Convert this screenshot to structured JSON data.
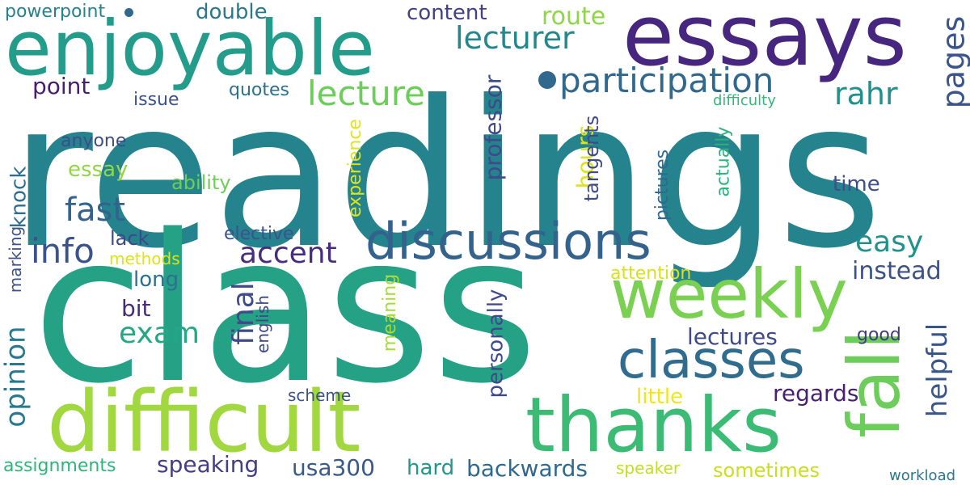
{
  "words": [
    {
      "id": "readings",
      "text": "readings",
      "color": "#24838d",
      "orientation": "horizontal"
    },
    {
      "id": "class",
      "text": "class",
      "color": "#25a286",
      "orientation": "horizontal"
    },
    {
      "id": "essays",
      "text": "essays",
      "color": "#46267e",
      "orientation": "horizontal"
    },
    {
      "id": "enjoyable",
      "text": "enjoyable",
      "color": "#249c8b",
      "orientation": "horizontal"
    },
    {
      "id": "difficult",
      "text": "difficult",
      "color": "#a1d73f",
      "orientation": "horizontal"
    },
    {
      "id": "thanks",
      "text": "thanks",
      "color": "#3cbb75",
      "orientation": "horizontal"
    },
    {
      "id": "discussions",
      "text": "discussions",
      "color": "#33638d",
      "orientation": "horizontal"
    },
    {
      "id": "weekly",
      "text": "weekly",
      "color": "#7ad151",
      "orientation": "horizontal"
    },
    {
      "id": "classes",
      "text": "classes",
      "color": "#2f6c8e",
      "orientation": "horizontal"
    },
    {
      "id": "fall",
      "text": "fall",
      "color": "#6ccd5a",
      "orientation": "vertical"
    },
    {
      "id": "participation",
      "text": "participation",
      "color": "#31688e",
      "orientation": "horizontal"
    },
    {
      "id": "lecturer",
      "text": "lecturer",
      "color": "#23888e",
      "orientation": "horizontal"
    },
    {
      "id": "lecture",
      "text": "lecture",
      "color": "#6ccd5a",
      "orientation": "horizontal"
    },
    {
      "id": "rahr",
      "text": "rahr",
      "color": "#21908d",
      "orientation": "horizontal"
    },
    {
      "id": "pages",
      "text": "pages",
      "color": "#3a548c",
      "orientation": "vertical"
    },
    {
      "id": "info",
      "text": "info",
      "color": "#3b528b",
      "orientation": "horizontal"
    },
    {
      "id": "fast",
      "text": "fast",
      "color": "#33638d",
      "orientation": "horizontal"
    },
    {
      "id": "accent",
      "text": "accent",
      "color": "#472d7b",
      "orientation": "horizontal"
    },
    {
      "id": "exam",
      "text": "exam",
      "color": "#22a884",
      "orientation": "horizontal"
    },
    {
      "id": "easy",
      "text": "easy",
      "color": "#21918c",
      "orientation": "horizontal"
    },
    {
      "id": "final",
      "text": "final",
      "color": "#3e4a89",
      "orientation": "vertical"
    },
    {
      "id": "helpful",
      "text": "helpful",
      "color": "#39568c",
      "orientation": "vertical"
    },
    {
      "id": "opinion",
      "text": "opinion",
      "color": "#2a788e",
      "orientation": "vertical"
    },
    {
      "id": "professor",
      "text": "professor",
      "color": "#3e4a89",
      "orientation": "vertical"
    },
    {
      "id": "personally",
      "text": "personally",
      "color": "#3e4989",
      "orientation": "vertical"
    },
    {
      "id": "instead",
      "text": "instead",
      "color": "#3b528b",
      "orientation": "horizontal"
    },
    {
      "id": "lectures",
      "text": "lectures",
      "color": "#3e4a89",
      "orientation": "horizontal"
    },
    {
      "id": "regards",
      "text": "regards",
      "color": "#482173",
      "orientation": "horizontal"
    },
    {
      "id": "speaking",
      "text": "speaking",
      "color": "#433e85",
      "orientation": "horizontal"
    },
    {
      "id": "backwards",
      "text": "backwards",
      "color": "#31688e",
      "orientation": "horizontal"
    },
    {
      "id": "usa300",
      "text": "usa300",
      "color": "#38598c",
      "orientation": "horizontal"
    },
    {
      "id": "hours",
      "text": "hours",
      "color": "#dde318",
      "orientation": "vertical"
    },
    {
      "id": "tangents",
      "text": "tangents",
      "color": "#3e4989",
      "orientation": "vertical"
    },
    {
      "id": "knock",
      "text": "knock",
      "color": "#2e6e8e",
      "orientation": "vertical"
    },
    {
      "id": "essay",
      "text": "essay",
      "color": "#90d743",
      "orientation": "horizontal"
    },
    {
      "id": "point",
      "text": "point",
      "color": "#481f70",
      "orientation": "horizontal"
    },
    {
      "id": "content",
      "text": "content",
      "color": "#424086",
      "orientation": "horizontal"
    },
    {
      "id": "route",
      "text": "route",
      "color": "#8ed645",
      "orientation": "horizontal"
    },
    {
      "id": "double",
      "text": "double",
      "color": "#2a778e",
      "orientation": "horizontal"
    },
    {
      "id": "powerpoint",
      "text": "powerpoint",
      "color": "#26828e",
      "orientation": "horizontal"
    },
    {
      "id": "quotes",
      "text": "quotes",
      "color": "#2d708e",
      "orientation": "horizontal"
    },
    {
      "id": "issue",
      "text": "issue",
      "color": "#3b528b",
      "orientation": "horizontal"
    },
    {
      "id": "anyone",
      "text": "anyone",
      "color": "#3d4d8a",
      "orientation": "horizontal"
    },
    {
      "id": "ability",
      "text": "ability",
      "color": "#6ece58",
      "orientation": "horizontal"
    },
    {
      "id": "experience",
      "text": "experience",
      "color": "#e2e418",
      "orientation": "vertical"
    },
    {
      "id": "pictures",
      "text": "pictures",
      "color": "#31688e",
      "orientation": "vertical"
    },
    {
      "id": "actually",
      "text": "actually",
      "color": "#2db27d",
      "orientation": "vertical"
    },
    {
      "id": "time",
      "text": "time",
      "color": "#3d4e8a",
      "orientation": "horizontal"
    },
    {
      "id": "difficulty",
      "text": "difficulty",
      "color": "#35b779",
      "orientation": "horizontal"
    },
    {
      "id": "lack",
      "text": "lack",
      "color": "#3f4889",
      "orientation": "horizontal"
    },
    {
      "id": "methods",
      "text": "methods",
      "color": "#dde318",
      "orientation": "horizontal"
    },
    {
      "id": "elective",
      "text": "elective",
      "color": "#3a548c",
      "orientation": "horizontal"
    },
    {
      "id": "long",
      "text": "long",
      "color": "#2c718e",
      "orientation": "horizontal"
    },
    {
      "id": "bit",
      "text": "bit",
      "color": "#472c7a",
      "orientation": "horizontal"
    },
    {
      "id": "marking",
      "text": "marking",
      "color": "#3b528b",
      "orientation": "vertical"
    },
    {
      "id": "english",
      "text": "english",
      "color": "#3f4788",
      "orientation": "vertical"
    },
    {
      "id": "meaning",
      "text": "meaning",
      "color": "#a8db34",
      "orientation": "vertical"
    },
    {
      "id": "attention",
      "text": "attention",
      "color": "#d8e219",
      "orientation": "horizontal"
    },
    {
      "id": "good",
      "text": "good",
      "color": "#453882",
      "orientation": "horizontal"
    },
    {
      "id": "little",
      "text": "little",
      "color": "#f1e51d",
      "orientation": "horizontal"
    },
    {
      "id": "scheme",
      "text": "scheme",
      "color": "#3b528b",
      "orientation": "horizontal"
    },
    {
      "id": "assignments",
      "text": "assignments",
      "color": "#2fb47c",
      "orientation": "horizontal"
    },
    {
      "id": "hard",
      "text": "hard",
      "color": "#1f988b",
      "orientation": "horizontal"
    },
    {
      "id": "speaker",
      "text": "speaker",
      "color": "#c2df23",
      "orientation": "horizontal"
    },
    {
      "id": "sometimes",
      "text": "sometimes",
      "color": "#c8e020",
      "orientation": "horizontal"
    },
    {
      "id": "workload",
      "text": "workload",
      "color": "#2a788e",
      "orientation": "horizontal"
    }
  ],
  "decorations": {
    "dot_color": "#31688e"
  }
}
